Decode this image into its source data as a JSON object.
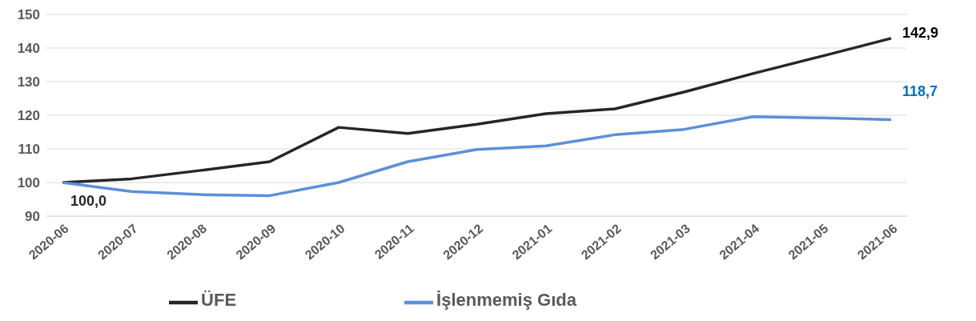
{
  "chart_data": {
    "type": "line",
    "categories": [
      "2020-06",
      "2020-07",
      "2020-08",
      "2020-09",
      "2020-10",
      "2020-11",
      "2020-12",
      "2021-01",
      "2021-02",
      "2021-03",
      "2021-04",
      "2021-05",
      "2021-06"
    ],
    "series": [
      {
        "name": "ÜFE",
        "color": "#262626",
        "values": [
          100.0,
          101.1,
          103.6,
          106.2,
          116.4,
          114.6,
          117.3,
          120.5,
          121.9,
          126.9,
          132.4,
          137.6,
          142.9
        ],
        "value_labels": [
          "100,0",
          null,
          null,
          null,
          null,
          null,
          null,
          null,
          null,
          null,
          null,
          null,
          "142,9"
        ]
      },
      {
        "name": "İşlenmemiş Gıda",
        "color": "#5b8fd9",
        "values": [
          100.0,
          97.3,
          96.4,
          96.1,
          100.0,
          106.2,
          109.8,
          110.9,
          114.2,
          115.8,
          119.6,
          119.2,
          118.7
        ],
        "value_labels": [
          null,
          null,
          null,
          null,
          null,
          null,
          null,
          null,
          null,
          null,
          null,
          null,
          "118,7"
        ]
      }
    ],
    "ylim": [
      90,
      150
    ],
    "yticks": [
      90,
      100,
      110,
      120,
      130,
      140,
      150
    ],
    "grid": "y",
    "legend": "bottom",
    "marker": "none",
    "line_style": "solid"
  }
}
